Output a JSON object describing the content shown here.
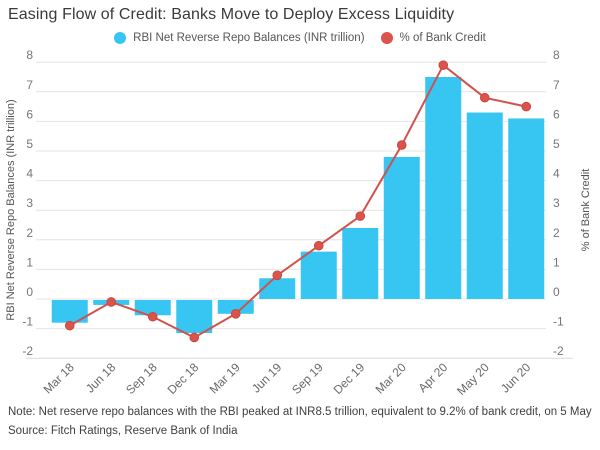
{
  "chart_data": {
    "type": "bar+line combo",
    "title": "Easing Flow of Credit: Banks Move to Deploy Excess Liquidity",
    "categories": [
      "Mar 18",
      "Jun 18",
      "Sep 18",
      "Dec 18",
      "Mar 19",
      "Jun 19",
      "Sep 19",
      "Dec 19",
      "Mar 20",
      "Apr 20",
      "May 20",
      "Jun 20"
    ],
    "series": [
      {
        "name": "RBI Net Reverse Repo Balances (INR trillion)",
        "type": "bar",
        "axis": "left",
        "values": [
          -0.8,
          -0.2,
          -0.55,
          -1.15,
          -0.5,
          0.7,
          1.6,
          2.4,
          4.8,
          7.5,
          6.3,
          6.1
        ]
      },
      {
        "name": "% of Bank Credit",
        "type": "line",
        "axis": "right",
        "values": [
          -0.9,
          -0.1,
          -0.6,
          -1.3,
          -0.5,
          0.8,
          1.8,
          2.8,
          5.2,
          7.9,
          6.8,
          6.5
        ]
      }
    ],
    "left_axis": {
      "title": "RBI Net Reverse Repo Balances (INR trillion)",
      "min": -2,
      "max": 8,
      "step": 1
    },
    "right_axis": {
      "title": "% of Bank Credit",
      "min": -2,
      "max": 8,
      "step": 1
    },
    "ticks": [
      8,
      7,
      6,
      5,
      4,
      3,
      2,
      1,
      0,
      -1,
      -2
    ],
    "grid": true,
    "legend_position": "top-center",
    "note": "Note: Net reserve repo balances with the RBI peaked at INR8.5 trillion, equivalent to 9.2% of bank credit, on 5 May",
    "source": "Source: Fitch Ratings, Reserve Bank of India",
    "colors": {
      "bar": "#37C6F2",
      "line": "#D0524C",
      "dot_fill": "#DB544C",
      "dot_stroke": "#C84740",
      "grid": "#E4E4E4",
      "axis_bottom": "#D8D8D8",
      "tick_text": "#757575",
      "axis_title_text": "#555555",
      "title_text": "#3A3A3A",
      "note_text": "#3F3F3F"
    }
  }
}
